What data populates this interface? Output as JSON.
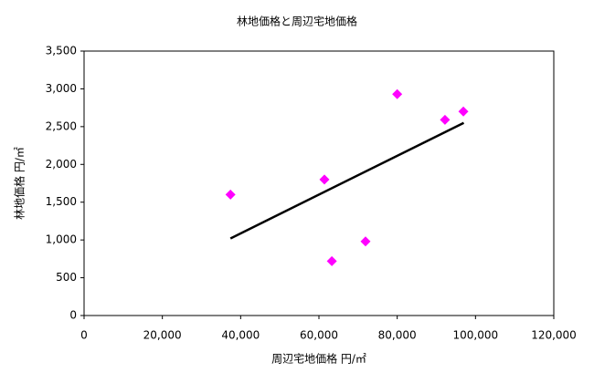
{
  "chart_data": {
    "type": "scatter",
    "title": "林地価格と周辺宅地価格",
    "xlabel": "周辺宅地価格 円/㎡",
    "ylabel": "林地価格 円/㎡",
    "x": [
      37400,
      61400,
      63300,
      71900,
      80000,
      92200,
      96900
    ],
    "values": [
      1600,
      1800,
      720,
      980,
      2930,
      2590,
      2700
    ],
    "color": "#ff00ff",
    "trendline": {
      "x": [
        37400,
        97000
      ],
      "values": [
        1020,
        2550
      ],
      "color": "#000000"
    },
    "xlim": [
      0,
      120000
    ],
    "xticks": [
      0,
      {
        "value": 20000,
        "label": "20,000"
      },
      {
        "value": 40000,
        "label": "40,000"
      },
      {
        "value": 60000,
        "label": "60,000"
      },
      {
        "value": 80000,
        "label": "80,000"
      },
      {
        "value": 100000,
        "label": "100,000"
      },
      {
        "value": 120000,
        "label": "120,000"
      }
    ],
    "ylim": [
      0,
      3500
    ],
    "yticks": [
      0,
      500,
      {
        "value": 1000,
        "label": "1,000"
      },
      {
        "value": 1500,
        "label": "1,500"
      },
      {
        "value": 2000,
        "label": "2,000"
      },
      {
        "value": 2500,
        "label": "2,500"
      },
      {
        "value": 3000,
        "label": "3,000"
      },
      {
        "value": 3500,
        "label": "3,500"
      }
    ],
    "grid": false
  }
}
